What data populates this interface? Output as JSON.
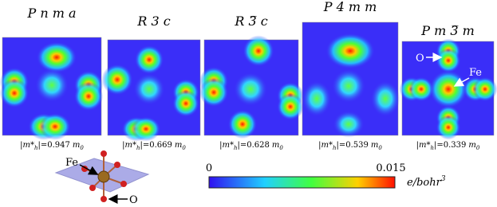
{
  "panels": [
    {
      "title": "P n m a",
      "mass": "0.947"
    },
    {
      "title": "R 3 c",
      "mass": "0.669"
    },
    {
      "title": "R 3̅ c",
      "mass": "0.628"
    },
    {
      "title": "P 4 m m",
      "mass": "0.539"
    },
    {
      "title": "P m 3̅ m",
      "mass": "0.339"
    }
  ],
  "mass_label": {
    "open": "|m*",
    "sub": "h",
    "close": "|=",
    "unit": "m",
    "unit_sub": "0"
  },
  "annotations": {
    "o_panel": "O",
    "fe_panel": "Fe",
    "fe_structure": "Fe",
    "o_structure": "O"
  },
  "colorbar": {
    "min": "0",
    "max": "0.015",
    "unit": "e/bohr",
    "unit_sup": "3"
  }
}
